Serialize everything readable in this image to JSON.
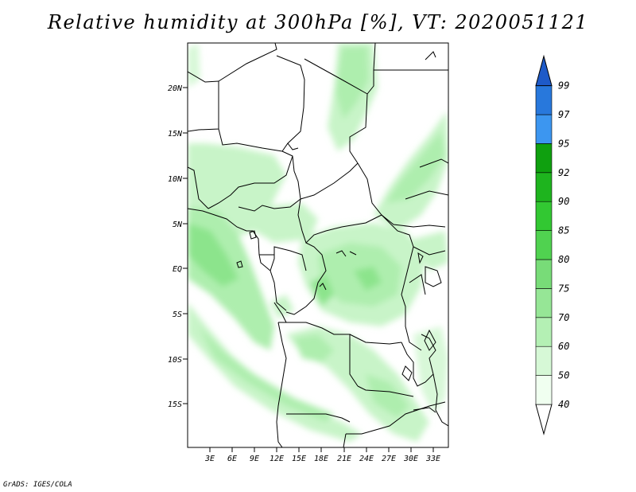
{
  "title": "Relative humidity at 300hPa [%], VT: 2020051121",
  "credit": "GrADS: IGES/COLA",
  "map": {
    "variable": "Relative humidity",
    "level": "300hPa",
    "units": "%",
    "valid_time": "2020051121",
    "lon_ticks": [
      "3E",
      "6E",
      "9E",
      "12E",
      "15E",
      "18E",
      "21E",
      "24E",
      "27E",
      "30E",
      "33E"
    ],
    "lat_ticks": [
      "20N",
      "15N",
      "10N",
      "5N",
      "EQ",
      "5S",
      "10S",
      "15S"
    ]
  },
  "colorbar": {
    "labels": [
      "40",
      "50",
      "60",
      "70",
      "75",
      "80",
      "85",
      "90",
      "92",
      "95",
      "97",
      "99"
    ],
    "colors": [
      "#f0fff0",
      "#d6f8d6",
      "#b4f0b4",
      "#96e696",
      "#78dc78",
      "#50d250",
      "#32c832",
      "#1eb41e",
      "#0fa00f",
      "#3c96f0",
      "#2878dc",
      "#1e5ac8"
    ]
  }
}
